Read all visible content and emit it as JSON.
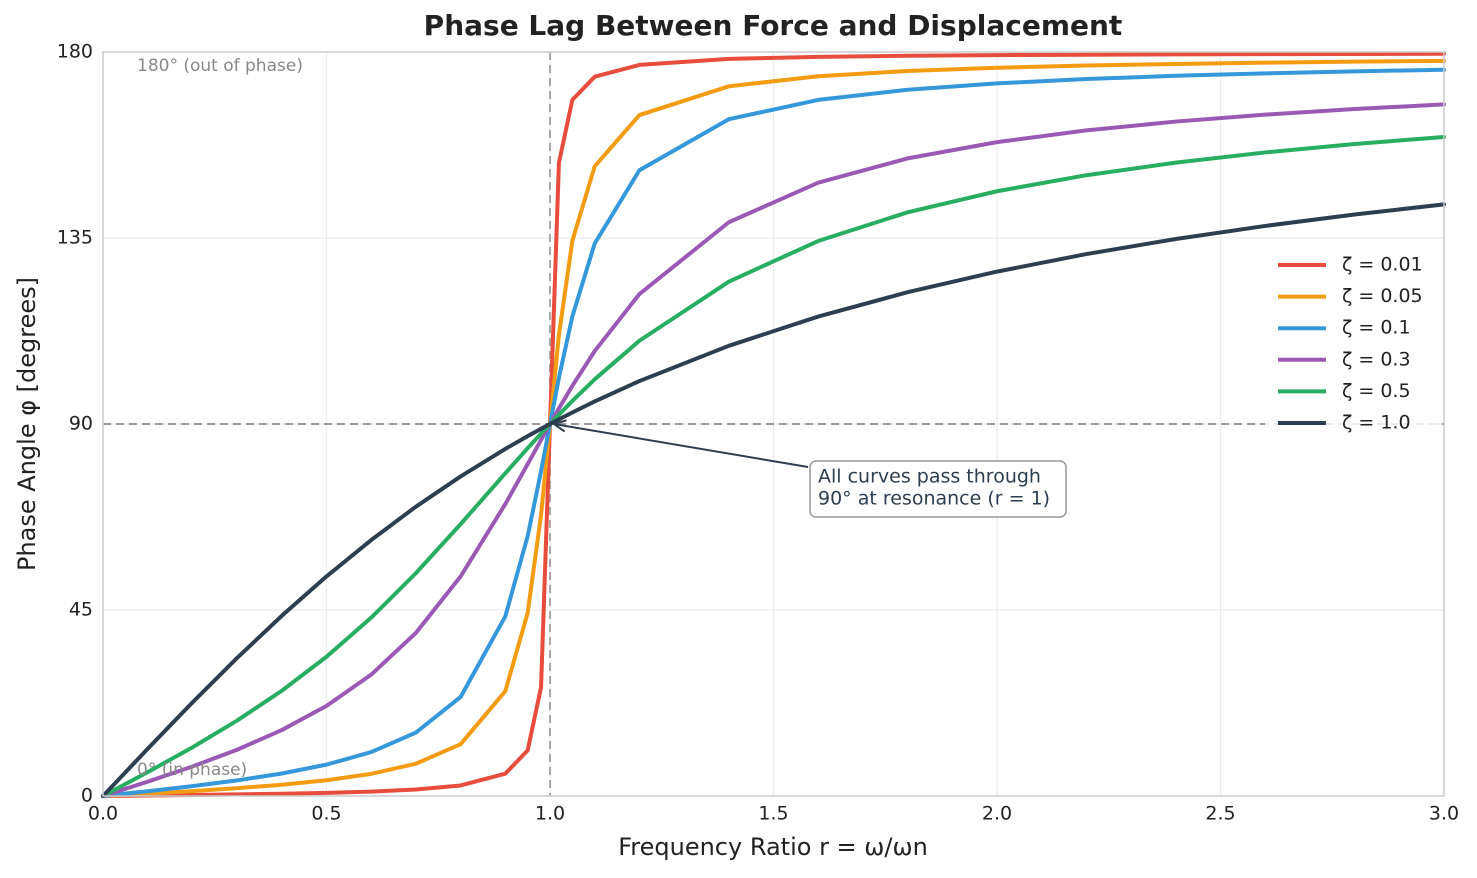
{
  "chart_data": {
    "type": "line",
    "title": "Phase Lag Between Force and Displacement",
    "xlabel": "Frequency Ratio r = ω/ωn",
    "ylabel": "Phase Angle φ [degrees]",
    "x": [
      0,
      0.1,
      0.2,
      0.3,
      0.4,
      0.5,
      0.6,
      0.7,
      0.8,
      0.9,
      0.95,
      0.98,
      1.0,
      1.02,
      1.05,
      1.1,
      1.2,
      1.4,
      1.6,
      1.8,
      2.0,
      2.2,
      2.4,
      2.6,
      2.8,
      3.0
    ],
    "series": [
      {
        "name": "ζ = 0.01",
        "color": "#e74c3c",
        "values": [
          0,
          0.12,
          0.24,
          0.38,
          0.55,
          0.76,
          1.07,
          1.57,
          2.55,
          5.41,
          11.03,
          26.33,
          90,
          153.21,
          168.42,
          174.02,
          176.88,
          178.33,
          178.82,
          179.08,
          179.24,
          179.34,
          179.42,
          179.48,
          179.53,
          179.57
        ]
      },
      {
        "name": "ζ = 0.05",
        "color": "#f39c12",
        "values": [
          0,
          0.58,
          1.19,
          1.89,
          2.73,
          3.81,
          5.36,
          7.81,
          12.53,
          25.35,
          44.26,
          68.0,
          90,
          111.6,
          134.31,
          152.35,
          164.74,
          171.7,
          174.14,
          175.41,
          176.19,
          176.72,
          177.11,
          177.42,
          177.66,
          177.85
        ]
      },
      {
        "name": "ζ = 0.1",
        "color": "#3498db",
        "values": [
          0,
          1.16,
          2.39,
          3.77,
          5.44,
          7.59,
          10.62,
          15.35,
          23.96,
          43.45,
          62.84,
          78.58,
          90,
          101.2,
          116.01,
          133.67,
          151.39,
          163.74,
          168.41,
          170.87,
          172.41,
          173.46,
          174.24,
          174.84,
          175.32,
          175.71
        ]
      },
      {
        "name": "ζ = 0.3",
        "color": "#9b59b6",
        "values": [
          0,
          3.47,
          7.13,
          11.19,
          15.95,
          21.8,
          29.36,
          39.47,
          53.13,
          70.62,
          80.29,
          86.15,
          90,
          93.78,
          99.24,
          107.65,
          121.43,
          138.81,
          148.39,
          154.26,
          158.2,
          161.03,
          163.17,
          164.85,
          166.2,
          167.32
        ]
      },
      {
        "name": "ζ = 0.5",
        "color": "#27ae60",
        "values": [
          0,
          5.77,
          11.77,
          18.25,
          25.46,
          33.69,
          43.15,
          53.92,
          65.77,
          78.08,
          84.14,
          87.69,
          90,
          92.27,
          95.58,
          100.81,
          110.14,
          124.44,
          134.27,
          141.22,
          146.31,
          150.19,
          153.24,
          155.7,
          157.74,
          159.44
        ]
      },
      {
        "name": "ζ = 1.0",
        "color": "#2c3e50",
        "values": [
          0,
          11.42,
          22.62,
          33.4,
          43.6,
          53.13,
          61.93,
          70.0,
          77.32,
          83.97,
          87.06,
          88.84,
          90,
          91.13,
          92.79,
          95.45,
          100.39,
          108.92,
          115.99,
          121.89,
          126.87,
          131.11,
          134.76,
          137.92,
          140.69,
          143.13
        ]
      }
    ],
    "xlim": [
      0,
      3
    ],
    "ylim": [
      0,
      180
    ],
    "xticks": [
      {
        "value": 0,
        "label": "0.0"
      },
      0.5,
      {
        "value": 1,
        "label": "1.0"
      },
      1.5,
      {
        "value": 2,
        "label": "2.0"
      },
      2.5,
      {
        "value": 3,
        "label": "3.0"
      }
    ],
    "yticks": [
      0,
      45,
      90,
      135,
      180
    ],
    "grid": true,
    "hline": 90,
    "vline": 1,
    "legend": "right",
    "annotations": [
      {
        "text": "180° (out of phase)"
      },
      {
        "text": "0° (in phase)"
      },
      {
        "text": [
          "All curves pass through",
          "90° at resonance (r = 1)"
        ],
        "xy": [
          1,
          90
        ]
      }
    ]
  }
}
